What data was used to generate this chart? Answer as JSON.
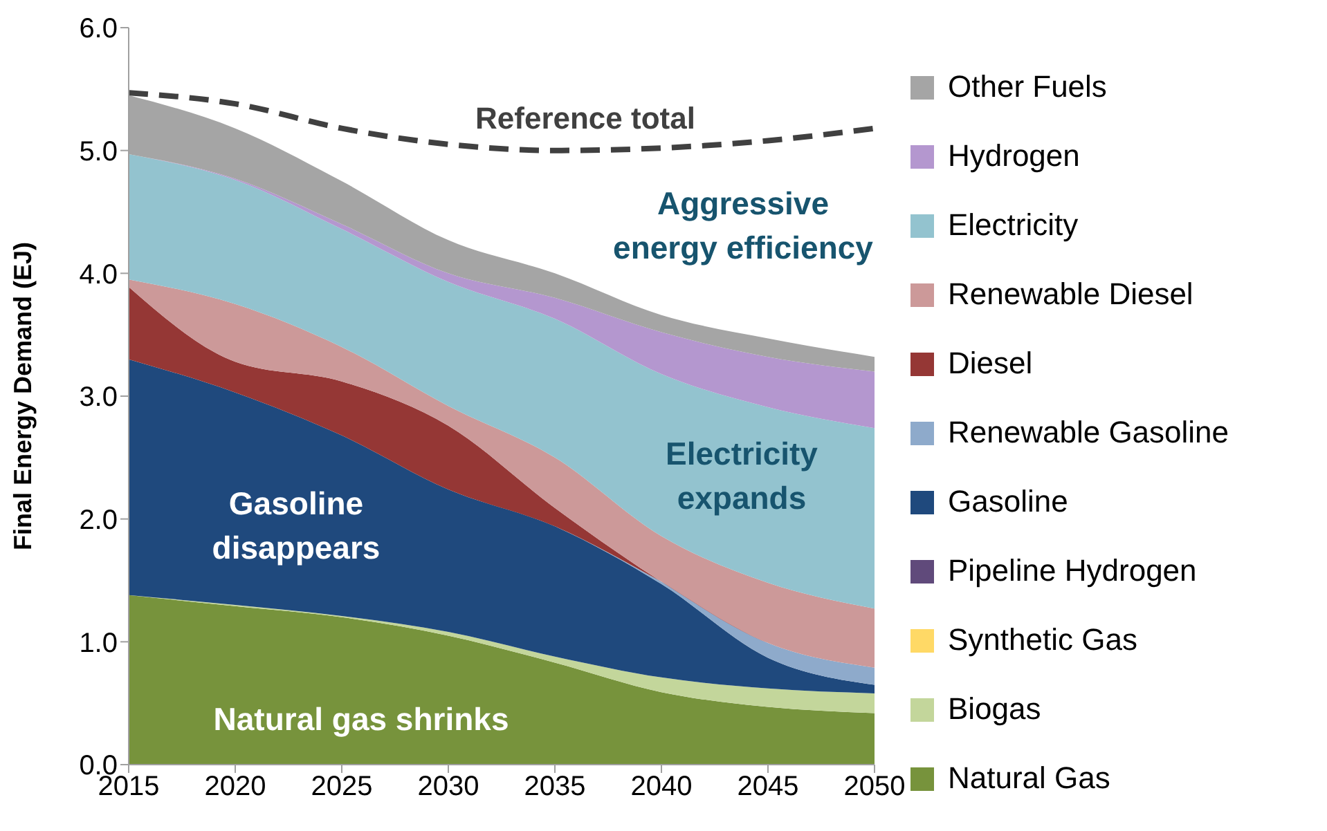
{
  "chart_data": {
    "type": "area",
    "stacked": true,
    "ylabel": "Final Energy Demand (EJ)",
    "x": [
      2015,
      2020,
      2025,
      2030,
      2035,
      2040,
      2045,
      2050
    ],
    "xlim": [
      2015,
      2050
    ],
    "xticks": [
      2015,
      2020,
      2025,
      2030,
      2035,
      2040,
      2045,
      2050
    ],
    "ylim": [
      0,
      6
    ],
    "yticks": [
      {
        "value": 0,
        "label": "0.0"
      },
      {
        "value": 1,
        "label": "1.0"
      },
      {
        "value": 2,
        "label": "2.0"
      },
      {
        "value": 3,
        "label": "3.0"
      },
      {
        "value": 4,
        "label": "4.0"
      },
      {
        "value": 5,
        "label": "5.0"
      },
      {
        "value": 6,
        "label": "6.0"
      }
    ],
    "grid": false,
    "legend": "right",
    "series": [
      {
        "name": "Natural Gas",
        "color": "#77933c",
        "values": [
          1.38,
          1.29,
          1.2,
          1.05,
          0.83,
          0.59,
          0.47,
          0.42
        ]
      },
      {
        "name": "Biogas",
        "color": "#c3d69b",
        "values": [
          0,
          0.01,
          0.01,
          0.03,
          0.05,
          0.12,
          0.15,
          0.16
        ]
      },
      {
        "name": "Synthetic Gas",
        "color": "#ffd966",
        "values": [
          null,
          null,
          null,
          null,
          null,
          null,
          null,
          null
        ]
      },
      {
        "name": "Pipeline Hydrogen",
        "color": "#604a7b",
        "values": [
          null,
          null,
          null,
          null,
          null,
          null,
          null,
          null
        ]
      },
      {
        "name": "Gasoline",
        "color": "#1f497d",
        "values": [
          1.92,
          1.73,
          1.47,
          1.16,
          1.06,
          0.76,
          0.25,
          0.07
        ]
      },
      {
        "name": "Renewable Gasoline",
        "color": "#8eaacb",
        "values": [
          0,
          0,
          0,
          0,
          0,
          0.02,
          0.12,
          0.14
        ]
      },
      {
        "name": "Diesel",
        "color": "#953735",
        "values": [
          0.59,
          0.25,
          0.44,
          0.52,
          0.15,
          0,
          0,
          0
        ]
      },
      {
        "name": "Renewable Diesel",
        "color": "#cc9999",
        "values": [
          0.06,
          0.47,
          0.28,
          0.16,
          0.41,
          0.37,
          0.49,
          0.48
        ]
      },
      {
        "name": "Electricity",
        "color": "#93c3cf",
        "values": [
          1.02,
          1.01,
          0.96,
          1.01,
          1.13,
          1.32,
          1.43,
          1.47
        ]
      },
      {
        "name": "Hydrogen",
        "color": "#b497cf",
        "values": [
          0,
          0.01,
          0.04,
          0.07,
          0.17,
          0.34,
          0.41,
          0.46
        ]
      },
      {
        "name": "Other Fuels",
        "color": "#a5a5a5",
        "values": [
          0.48,
          0.41,
          0.35,
          0.27,
          0.2,
          0.14,
          0.15,
          0.12
        ]
      },
      {
        "name": "Reference total",
        "type": "line",
        "line_style": "dashed",
        "color": "#404040",
        "values": [
          5.47,
          5.38,
          5.18,
          5.05,
          5.0,
          5.02,
          5.08,
          5.18
        ]
      }
    ],
    "annotations": [
      "Aggressive\nenergy efficiency",
      "Electricity\nexpands",
      "Gasoline\ndisappears",
      "Natural gas shrinks"
    ]
  }
}
